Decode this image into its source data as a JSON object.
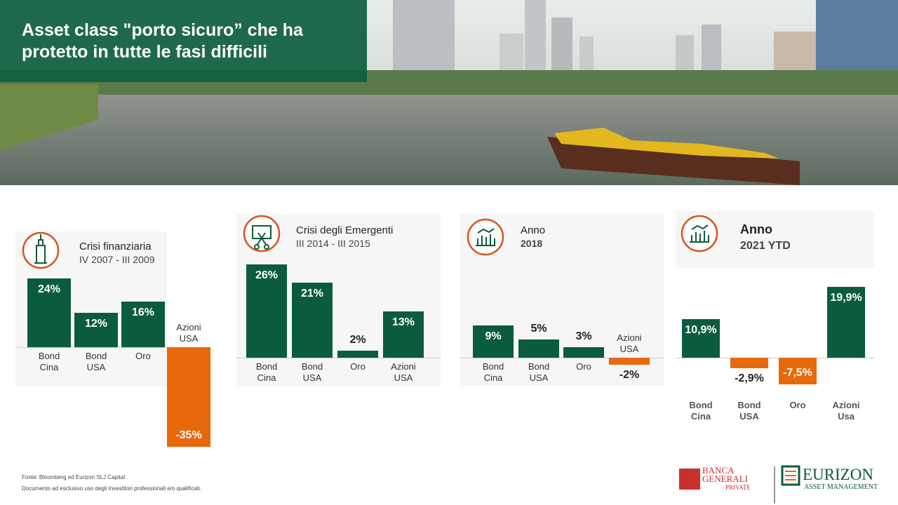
{
  "title": "Asset class \"porto sicuro” che ha protetto in tutte le fasi difficili",
  "chart_data": [
    {
      "type": "bar",
      "title": "Crisi finanziaria",
      "subtitle": "IV 2007 - III 2009",
      "categories": [
        "Bond Cina",
        "Bond USA",
        "Oro",
        "Azioni USA"
      ],
      "values": [
        24,
        12,
        16,
        -35
      ],
      "value_labels": [
        "24%",
        "12%",
        "16%",
        "-35%"
      ],
      "ylim": [
        -35,
        24
      ],
      "color": "#0b5c3c",
      "negative_color": "#e8680c"
    },
    {
      "type": "bar",
      "title": "Crisi degli Emergenti",
      "subtitle": "III 2014 - III 2015",
      "categories": [
        "Bond Cina",
        "Bond USA",
        "Oro",
        "Azioni USA"
      ],
      "values": [
        26,
        21,
        2,
        13
      ],
      "value_labels": [
        "26%",
        "21%",
        "2%",
        "13%"
      ],
      "ylim": [
        0,
        26
      ],
      "color": "#0b5c3c",
      "negative_color": "#e8680c"
    },
    {
      "type": "bar",
      "title": "Anno",
      "subtitle": "2018",
      "categories": [
        "Bond Cina",
        "Bond USA",
        "Oro",
        "Azioni USA"
      ],
      "values": [
        9,
        5,
        3,
        -2
      ],
      "value_labels": [
        "9%",
        "5%",
        "3%",
        "-2%"
      ],
      "ylim": [
        -2,
        9
      ],
      "color": "#0b5c3c",
      "negative_color": "#e8680c"
    },
    {
      "type": "bar",
      "title": "Anno",
      "subtitle": "2021 YTD",
      "categories": [
        "Bond Cina",
        "Bond USA",
        "Oro",
        "Azioni Usa"
      ],
      "values": [
        10.9,
        -2.9,
        -7.5,
        19.9
      ],
      "value_labels": [
        "10,9%",
        "-2,9%",
        "-7,5%",
        "19,9%"
      ],
      "ylim": [
        -7.5,
        19.9
      ],
      "color": "#0b5c3c",
      "negative_color": "#e8680c"
    }
  ],
  "footer": [
    "Fonte: Bloomberg ed Eurizon SLJ Capital.",
    "Documento ad esclusivo uso degli Investitori professionali e/o qualificati."
  ],
  "logos": {
    "bank": "BANCA GENERALI",
    "bank_sub": "PRIVATE",
    "eurizon": "EURIZON",
    "eurizon_sub": "ASSET MANAGEMENT"
  }
}
